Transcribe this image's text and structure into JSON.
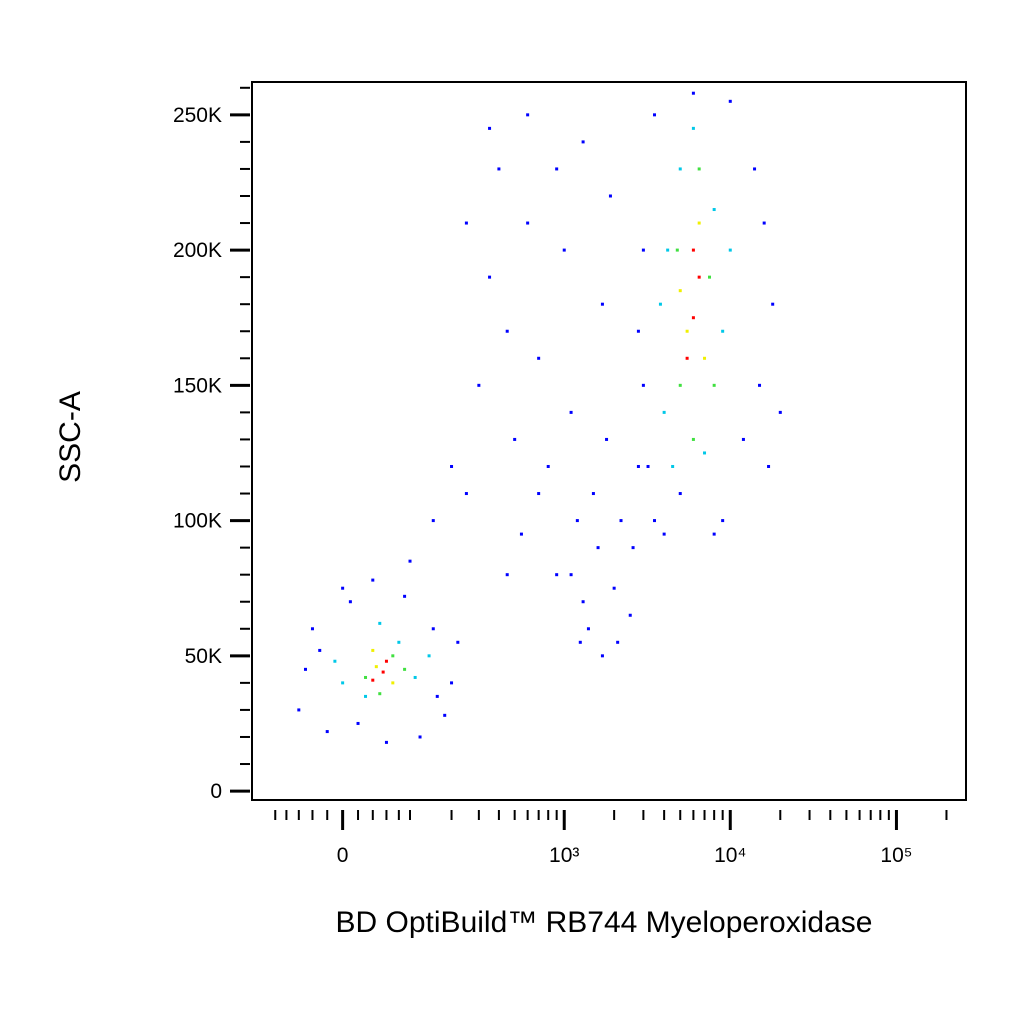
{
  "chart_data": {
    "type": "scatter",
    "xlabel": "BD OptiBuild™ RB744 Myeloperoxidase",
    "ylabel": "SSC-A",
    "xscale": "biexponential",
    "xlim": [
      -150,
      262144
    ],
    "ylim": [
      -3300,
      262144
    ],
    "xticks": [
      0,
      {
        "value": 1000,
        "label": "10³"
      },
      {
        "value": 10000,
        "label": "10⁴"
      },
      {
        "value": 100000,
        "label": "10⁵"
      }
    ],
    "xminorticks": [
      -100,
      -80,
      -60,
      -40,
      -20,
      20,
      40,
      60,
      80,
      100,
      200,
      300,
      400,
      500,
      600,
      700,
      800,
      900,
      2000,
      3000,
      4000,
      5000,
      6000,
      7000,
      8000,
      9000,
      20000,
      30000,
      40000,
      50000,
      60000,
      70000,
      80000,
      90000,
      200000
    ],
    "yticks": [
      0,
      {
        "value": 50000,
        "label": "50K"
      },
      {
        "value": 100000,
        "label": "100K"
      },
      {
        "value": 150000,
        "label": "150K"
      },
      {
        "value": 200000,
        "label": "200K"
      },
      {
        "value": 250000,
        "label": "250K"
      }
    ],
    "yminorticks": [
      10000,
      20000,
      30000,
      40000,
      60000,
      70000,
      80000,
      90000,
      110000,
      120000,
      130000,
      140000,
      160000,
      170000,
      180000,
      190000,
      210000,
      220000,
      230000,
      240000,
      260000
    ],
    "series": [
      {
        "color": "#0000ff",
        "x": [
          -60,
          -40,
          -20,
          10,
          40,
          90,
          150,
          200,
          180,
          120,
          60,
          -50,
          -30,
          220,
          100,
          0,
          20,
          160,
          250,
          300,
          350,
          400,
          450,
          500,
          550,
          600,
          700,
          800,
          900,
          1000,
          1100,
          1200,
          1300,
          1400,
          1500,
          1600,
          1700,
          1800,
          2000,
          2200,
          2500,
          2800,
          3000,
          1300,
          600,
          350,
          200,
          150,
          250,
          450,
          700,
          900,
          1100,
          1250,
          1700,
          2100,
          2600,
          1900,
          3500,
          4000,
          5000,
          9000,
          12000,
          15000,
          18000,
          16000,
          14000,
          10000,
          6000,
          3500,
          3000,
          2800,
          3200,
          20000,
          17000,
          8000
        ],
        "y": [
          30000,
          60000,
          22000,
          70000,
          78000,
          72000,
          60000,
          40000,
          28000,
          20000,
          18000,
          45000,
          52000,
          55000,
          85000,
          75000,
          25000,
          35000,
          110000,
          150000,
          190000,
          230000,
          170000,
          130000,
          95000,
          210000,
          160000,
          120000,
          80000,
          200000,
          140000,
          100000,
          70000,
          60000,
          110000,
          90000,
          180000,
          130000,
          75000,
          100000,
          65000,
          120000,
          150000,
          240000,
          250000,
          245000,
          120000,
          100000,
          210000,
          80000,
          110000,
          230000,
          80000,
          55000,
          50000,
          55000,
          90000,
          220000,
          100000,
          95000,
          110000,
          100000,
          130000,
          150000,
          180000,
          210000,
          230000,
          255000,
          258000,
          250000,
          200000,
          170000,
          120000,
          140000,
          120000,
          95000
        ]
      },
      {
        "color": "#00c8e8",
        "x": [
          0,
          30,
          80,
          110,
          50,
          -10,
          140,
          4000,
          5000,
          8000,
          9000,
          3800,
          4500,
          7000,
          10000,
          6000,
          4200
        ],
        "y": [
          40000,
          35000,
          55000,
          42000,
          62000,
          48000,
          50000,
          140000,
          230000,
          215000,
          170000,
          180000,
          120000,
          125000,
          200000,
          245000,
          200000
        ]
      },
      {
        "color": "#40e040",
        "x": [
          30,
          70,
          50,
          90,
          5000,
          7500,
          6500,
          4800,
          8000,
          6000
        ],
        "y": [
          42000,
          50000,
          36000,
          45000,
          150000,
          190000,
          230000,
          200000,
          150000,
          130000
        ]
      },
      {
        "color": "#f0f000",
        "x": [
          45,
          70,
          40,
          5500,
          6500,
          5000,
          7000
        ],
        "y": [
          46000,
          40000,
          52000,
          170000,
          210000,
          185000,
          160000
        ]
      },
      {
        "color": "#ff0000",
        "x": [
          55,
          60,
          40,
          6000,
          5500,
          6500,
          6000
        ],
        "y": [
          44000,
          48000,
          41000,
          175000,
          160000,
          190000,
          200000
        ]
      }
    ]
  }
}
